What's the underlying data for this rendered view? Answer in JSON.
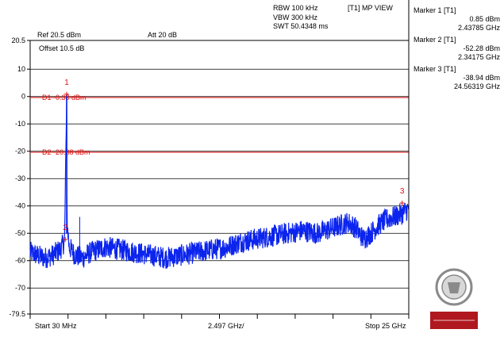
{
  "header": {
    "ref": "Ref 20.5 dBm",
    "att": "Att  20 dB",
    "rbw": "RBW 100 kHz",
    "vbw": "VBW 300 kHz",
    "swt": "SWT 50.4348 ms",
    "view": "[T1] MP VIEW",
    "offset": "Offset 10.5 dB"
  },
  "markers_panel": [
    {
      "title": "Marker 1 [T1]",
      "level": "0.85 dBm",
      "freq": "2.43785 GHz"
    },
    {
      "title": "Marker 2 [T1]",
      "level": "-52.28 dBm",
      "freq": "2.34175 GHz"
    },
    {
      "title": "Marker 3 [T1]",
      "level": "-38.94 dBm",
      "freq": "24.56319 GHz"
    }
  ],
  "footer": {
    "start": "Start 30 MHz",
    "div": "2.497 GHz/",
    "stop": "Stop 25 GHz"
  },
  "logo": {
    "text": "BUREAU VERITAS",
    "seal_text": "BUREAU VERITAS 1828",
    "color": "#b0181f"
  },
  "colors": {
    "trace": "#0b24ee",
    "lines": "#e01010",
    "grid": "#000000"
  },
  "chart_data": {
    "type": "line",
    "x_unit": "GHz",
    "y_unit": "dBm",
    "xlim": [
      0.03,
      25.0
    ],
    "ylim": [
      -79.5,
      20.5
    ],
    "y_ticks": [
      20.5,
      10,
      0,
      -10,
      -20,
      -30,
      -40,
      -50,
      -60,
      -70,
      -79.5
    ],
    "y_tick_labels": [
      "20.5",
      "10",
      "0",
      "-10",
      "-20",
      "-30",
      "-40",
      "-50",
      "-60",
      "-70",
      "-79.5"
    ],
    "display_lines": [
      {
        "label": "D1 -0.38 dBm",
        "y": -0.38
      },
      {
        "label": "D2 -20.38 dBm",
        "y": -20.38
      }
    ],
    "markers": [
      {
        "label": "1",
        "x": 2.43785,
        "y": 0.85
      },
      {
        "label": "2",
        "x": 2.34175,
        "y": -52.28
      },
      {
        "label": "3",
        "x": 24.56319,
        "y": -38.94
      }
    ],
    "series": [
      {
        "x": [
          0.03,
          0.5,
          1.0,
          1.5,
          2.0,
          2.3,
          2.42,
          2.44,
          2.46,
          2.6,
          3.0,
          3.5,
          4.0,
          5.0,
          6.0,
          7.0,
          8.0,
          9.0,
          10.0,
          11.0,
          12.0,
          13.0,
          14.0,
          15.0,
          16.0,
          17.0,
          18.0,
          19.0,
          20.0,
          20.5,
          21.0,
          21.5,
          22.0,
          22.5,
          23.0,
          23.5,
          24.0,
          24.5,
          25.0
        ],
        "y": [
          -57,
          -58,
          -59,
          -58,
          -56,
          -53,
          -8,
          0.85,
          -45,
          -55,
          -58,
          -59,
          -57,
          -55,
          -56,
          -57,
          -58,
          -59,
          -58,
          -57,
          -56,
          -55,
          -53,
          -52,
          -51,
          -50,
          -49,
          -50,
          -48,
          -47,
          -46,
          -48,
          -52,
          -50,
          -47,
          -45,
          -44,
          -43,
          -41
        ]
      }
    ]
  }
}
